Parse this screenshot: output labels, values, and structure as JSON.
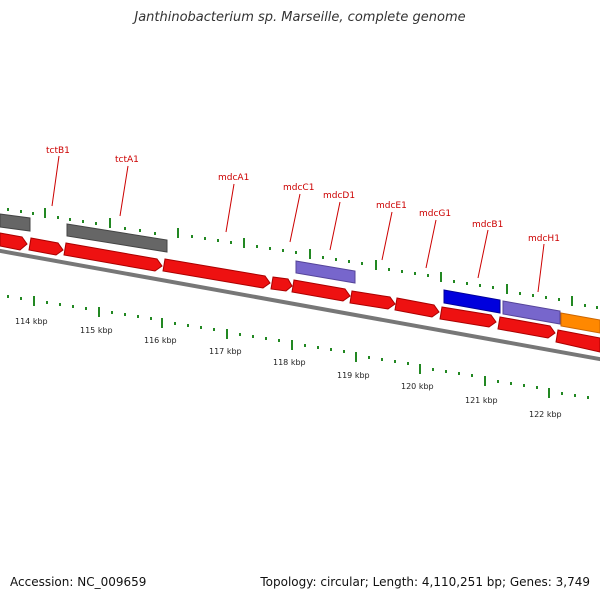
{
  "title": "Janthinobacterium sp. Marseille, complete genome",
  "footer": {
    "accession": "Accession: NC_009659",
    "summary": "Topology: circular; Length: 4,110,251 bp; Genes: 3,749"
  },
  "colors": {
    "forward_gene": "#ee0000",
    "grey_gene": "#666666",
    "purple_gene": "#7766cc",
    "blue_gene": "#0000dd",
    "orange_gene": "#ff8800",
    "backbone": "#888888",
    "ticks": "#228822",
    "gene_label": "#cc0000"
  },
  "gene_labels": [
    "tctB1",
    "tctA1",
    "mdcA1",
    "mdcC1",
    "mdcD1",
    "mdcE1",
    "mdcG1",
    "mdcB1",
    "mdcH1"
  ],
  "scale_labels": [
    "114 kbp",
    "115 kbp",
    "116 kbp",
    "117 kbp",
    "118 kbp",
    "119 kbp",
    "120 kbp",
    "121 kbp",
    "122 kbp"
  ]
}
